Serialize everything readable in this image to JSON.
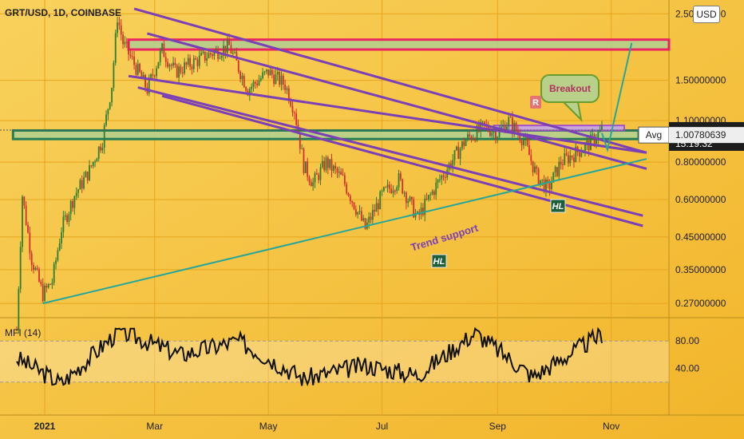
{
  "header": {
    "ticker": "GRT/USD, 1D, COINBASE",
    "currency_badge": "USD"
  },
  "indicator": {
    "label": "MFI (14)"
  },
  "colors": {
    "background": "#f6c843",
    "candle_up": "#2e7d32",
    "candle_down": "#d32f2f",
    "channel": "#7b3fb6",
    "trend_support": "#26a69a",
    "resistance_zone": "#e91e63",
    "avg_zone": "#1b7a57",
    "mfi_line": "#111111"
  },
  "annotations": {
    "breakout": "Breakout",
    "trend_support": "Trend support",
    "resistance_marker": "R",
    "higher_low_1": "HL",
    "higher_low_2": "HL"
  },
  "chart_data": [
    {
      "type": "candlestick",
      "title": "GRT/USD, 1D, COINBASE",
      "y_scale": "log",
      "y_ticks": [
        "2.50000000",
        "1.50000000",
        "1.10000000",
        "0.80000000",
        "0.60000000",
        "0.45000000",
        "0.35000000",
        "0.27000000"
      ],
      "x_ticks": [
        "2021",
        "Mar",
        "May",
        "Jul",
        "Sep",
        "Nov"
      ],
      "current_price": "1.02330000",
      "countdown": "15:19:32",
      "avg_label": "Avg",
      "avg_price": "1.00780639",
      "price_path": [
        [
          "2020-12-17",
          0.22
        ],
        [
          "2020-12-20",
          0.62
        ],
        [
          "2020-12-25",
          0.38
        ],
        [
          "2020-12-31",
          0.29
        ],
        [
          "2021-01-05",
          0.32
        ],
        [
          "2021-01-10",
          0.48
        ],
        [
          "2021-01-17",
          0.62
        ],
        [
          "2021-01-25",
          0.75
        ],
        [
          "2021-02-01",
          0.95
        ],
        [
          "2021-02-06",
          1.45
        ],
        [
          "2021-02-09",
          2.45
        ],
        [
          "2021-02-12",
          2.0
        ],
        [
          "2021-02-18",
          1.7
        ],
        [
          "2021-02-25",
          1.4
        ],
        [
          "2021-03-05",
          1.9
        ],
        [
          "2021-03-12",
          1.6
        ],
        [
          "2021-03-20",
          1.7
        ],
        [
          "2021-04-01",
          1.85
        ],
        [
          "2021-04-10",
          1.95
        ],
        [
          "2021-04-20",
          1.4
        ],
        [
          "2021-05-01",
          1.6
        ],
        [
          "2021-05-10",
          1.45
        ],
        [
          "2021-05-15",
          1.2
        ],
        [
          "2021-05-20",
          0.78
        ],
        [
          "2021-05-25",
          0.68
        ],
        [
          "2021-06-01",
          0.8
        ],
        [
          "2021-06-10",
          0.7
        ],
        [
          "2021-06-22",
          0.48
        ],
        [
          "2021-07-01",
          0.62
        ],
        [
          "2021-07-10",
          0.7
        ],
        [
          "2021-07-20",
          0.52
        ],
        [
          "2021-08-01",
          0.7
        ],
        [
          "2021-08-15",
          0.95
        ],
        [
          "2021-08-25",
          1.05
        ],
        [
          "2021-09-01",
          1.0
        ],
        [
          "2021-09-07",
          1.1
        ],
        [
          "2021-09-15",
          0.95
        ],
        [
          "2021-09-22",
          0.72
        ],
        [
          "2021-09-28",
          0.65
        ],
        [
          "2021-10-05",
          0.8
        ],
        [
          "2021-10-12",
          0.85
        ],
        [
          "2021-10-20",
          0.92
        ],
        [
          "2021-10-27",
          1.0233
        ]
      ],
      "series": [
        {
          "name": "Descending channel",
          "type": "channel_lines"
        },
        {
          "name": "Trend support",
          "from": [
            "2020-12-31",
            0.27
          ],
          "to": [
            "2021-11-20",
            0.82
          ]
        }
      ],
      "zones": [
        {
          "name": "Resistance zone",
          "y_range": [
            1.9,
            2.05
          ]
        },
        {
          "name": "Avg",
          "y_range": [
            0.955,
            1.02
          ]
        },
        {
          "name": "R",
          "y_range": [
            1.02,
            1.06
          ]
        }
      ],
      "projection": [
        [
          "2021-10-27",
          1.0
        ],
        [
          "2021-10-30",
          0.88
        ],
        [
          "2021-11-12",
          2.0
        ]
      ]
    },
    {
      "type": "line",
      "title": "MFI (14)",
      "y_ticks": [
        "80.00",
        "40.00"
      ],
      "band": [
        20,
        80
      ],
      "ylim": [
        0,
        100
      ],
      "x": [
        "2020-12-17",
        "2021-01-10",
        "2021-02-10",
        "2021-03-15",
        "2021-04-15",
        "2021-05-20",
        "2021-06-22",
        "2021-07-20",
        "2021-08-20",
        "2021-09-20",
        "2021-10-27"
      ],
      "values": [
        55,
        18,
        95,
        60,
        80,
        25,
        45,
        30,
        92,
        28,
        90
      ]
    }
  ]
}
